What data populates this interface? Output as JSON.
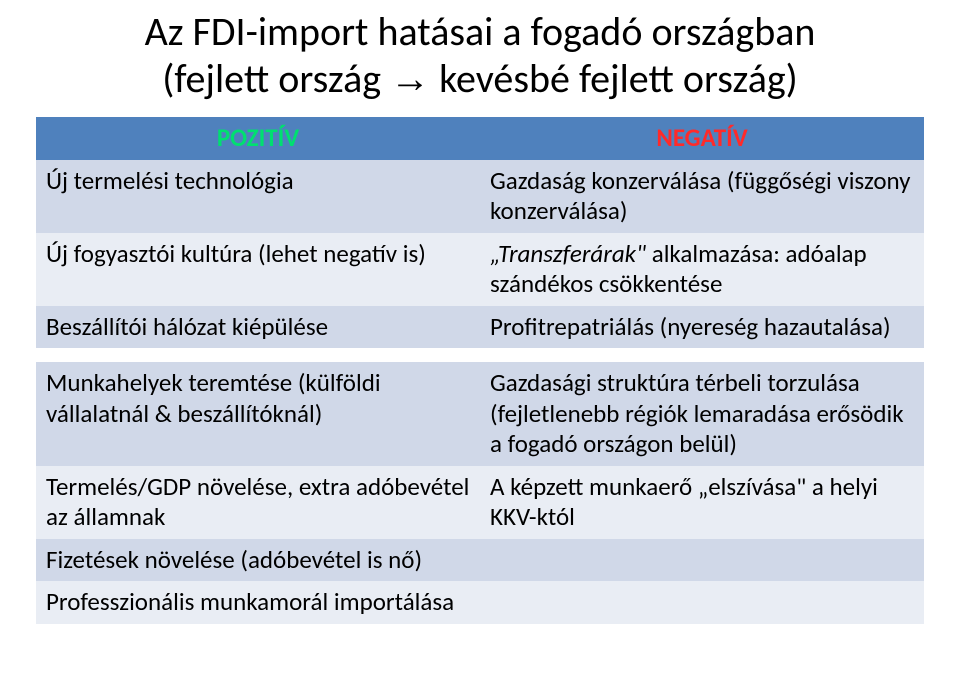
{
  "title_line1": "Az FDI-import hatásai a fogadó országban",
  "title_line2_pre": "(fejlett ország ",
  "title_line2_post": " kevésbé fejlett ország)",
  "arrow": "→",
  "headers": {
    "pos": "POZITÍV",
    "neg": "NEGATÍV"
  },
  "top": {
    "r1": {
      "pos": "Új termelési technológia",
      "neg": "Gazdaság konzerválása (függőségi viszony konzerválása)"
    },
    "r2": {
      "pos": "Új fogyasztói kultúra (lehet negatív is)",
      "neg_pre": "„Transzferárak\"",
      "neg_post": " alkalmazása: adóalap szándékos csökkentése"
    },
    "r3": {
      "pos": "Beszállítói hálózat kiépülése",
      "neg": "Profitrepatriálás (nyereség hazautalása)"
    }
  },
  "bottom": {
    "r1": {
      "pos": "Munkahelyek teremtése (külföldi vállalatnál & beszállítóknál)",
      "neg": "Gazdasági struktúra térbeli torzulása (fejletlenebb régiók lemaradása erősödik a fogadó országon belül)"
    },
    "r2": {
      "pos": "Termelés/GDP növelése, extra adóbevétel az államnak",
      "neg": "A képzett munkaerő „elszívása\" a helyi KKV-któl"
    },
    "r3": {
      "pos": "Fizetések növelése (adóbevétel is nő)",
      "neg": ""
    },
    "r4": {
      "pos": "Professzionális munkamorál importálása",
      "neg": ""
    }
  },
  "colors": {
    "header_bg": "#4f81bd",
    "pos_text": "#00e070",
    "neg_text": "#ff2a2a",
    "row_alt": "#d0d8e8",
    "row_plain": "#e9edf4"
  }
}
